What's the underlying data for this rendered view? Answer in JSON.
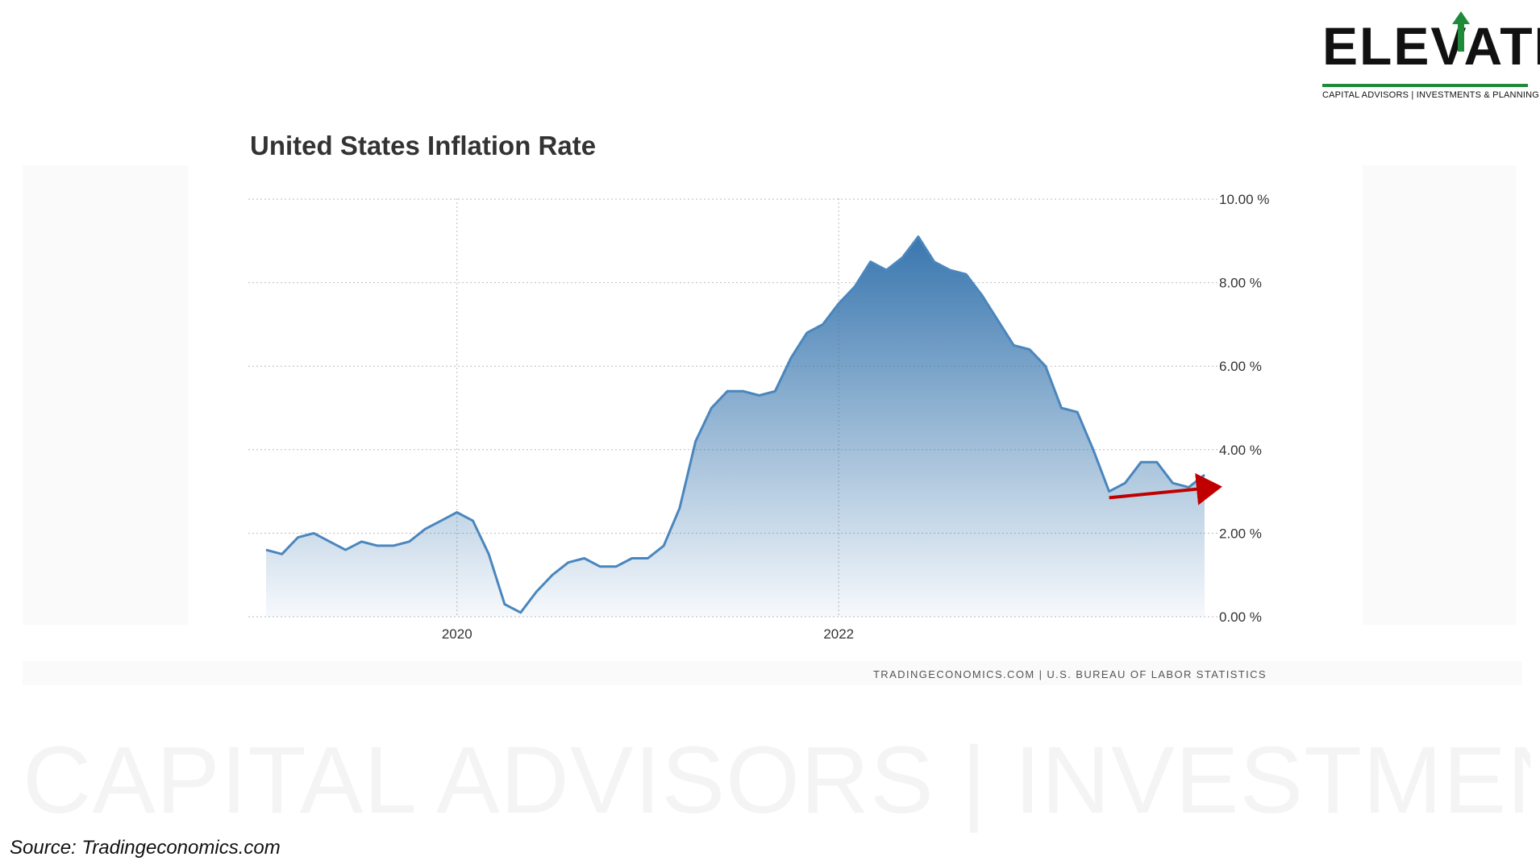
{
  "logo": {
    "wordmark": "ELEVATE",
    "tagline": "CAPITAL ADVISORS | INVESTMENTS & PLANNING",
    "accent_color": "#1f8a3a"
  },
  "watermark": {
    "tagline": "CAPITAL ADVISORS | INVESTMENTS & PLANNING"
  },
  "chart_data": {
    "type": "area",
    "title": "United States Inflation Rate",
    "xlabel": "",
    "ylabel": "",
    "y_ticks": [
      "0.00 %",
      "2.00 %",
      "4.00 %",
      "6.00 %",
      "8.00 %",
      "10.00 %"
    ],
    "x_ticks": [
      "2020",
      "2022"
    ],
    "ylim": [
      0,
      10
    ],
    "grid": true,
    "line_color": "#4a86bd",
    "fill_color": "#2e6faa",
    "x_start": "2019-01",
    "x_end": "2023-12",
    "x": [
      "2019-01",
      "2019-02",
      "2019-03",
      "2019-04",
      "2019-05",
      "2019-06",
      "2019-07",
      "2019-08",
      "2019-09",
      "2019-10",
      "2019-11",
      "2019-12",
      "2020-01",
      "2020-02",
      "2020-03",
      "2020-04",
      "2020-05",
      "2020-06",
      "2020-07",
      "2020-08",
      "2020-09",
      "2020-10",
      "2020-11",
      "2020-12",
      "2021-01",
      "2021-02",
      "2021-03",
      "2021-04",
      "2021-05",
      "2021-06",
      "2021-07",
      "2021-08",
      "2021-09",
      "2021-10",
      "2021-11",
      "2021-12",
      "2022-01",
      "2022-02",
      "2022-03",
      "2022-04",
      "2022-05",
      "2022-06",
      "2022-07",
      "2022-08",
      "2022-09",
      "2022-10",
      "2022-11",
      "2022-12",
      "2023-01",
      "2023-02",
      "2023-03",
      "2023-04",
      "2023-05",
      "2023-06",
      "2023-07",
      "2023-08",
      "2023-09",
      "2023-10",
      "2023-11",
      "2023-12"
    ],
    "series": [
      {
        "values": [
          1.6,
          1.5,
          1.9,
          2.0,
          1.8,
          1.6,
          1.8,
          1.7,
          1.7,
          1.8,
          2.1,
          2.3,
          2.5,
          2.3,
          1.5,
          0.3,
          0.1,
          0.6,
          1.0,
          1.3,
          1.4,
          1.2,
          1.2,
          1.4,
          1.4,
          1.7,
          2.6,
          4.2,
          5.0,
          5.4,
          5.4,
          5.3,
          5.4,
          6.2,
          6.8,
          7.0,
          7.5,
          7.9,
          8.5,
          8.3,
          8.6,
          9.1,
          8.5,
          8.3,
          8.2,
          7.7,
          7.1,
          6.5,
          6.4,
          6.0,
          5.0,
          4.9,
          4.0,
          3.0,
          3.2,
          3.7,
          3.7,
          3.2,
          3.1,
          3.4
        ]
      }
    ],
    "annotation": {
      "type": "arrow",
      "color": "#c00000",
      "from": {
        "x": "2023-06",
        "y": 2.85
      },
      "to": {
        "x": "2023-12",
        "y": 3.1
      }
    },
    "footer": "TRADINGECONOMICS.COM  |  U.S. BUREAU OF LABOR STATISTICS"
  },
  "source": "Source: Tradingeconomics.com"
}
